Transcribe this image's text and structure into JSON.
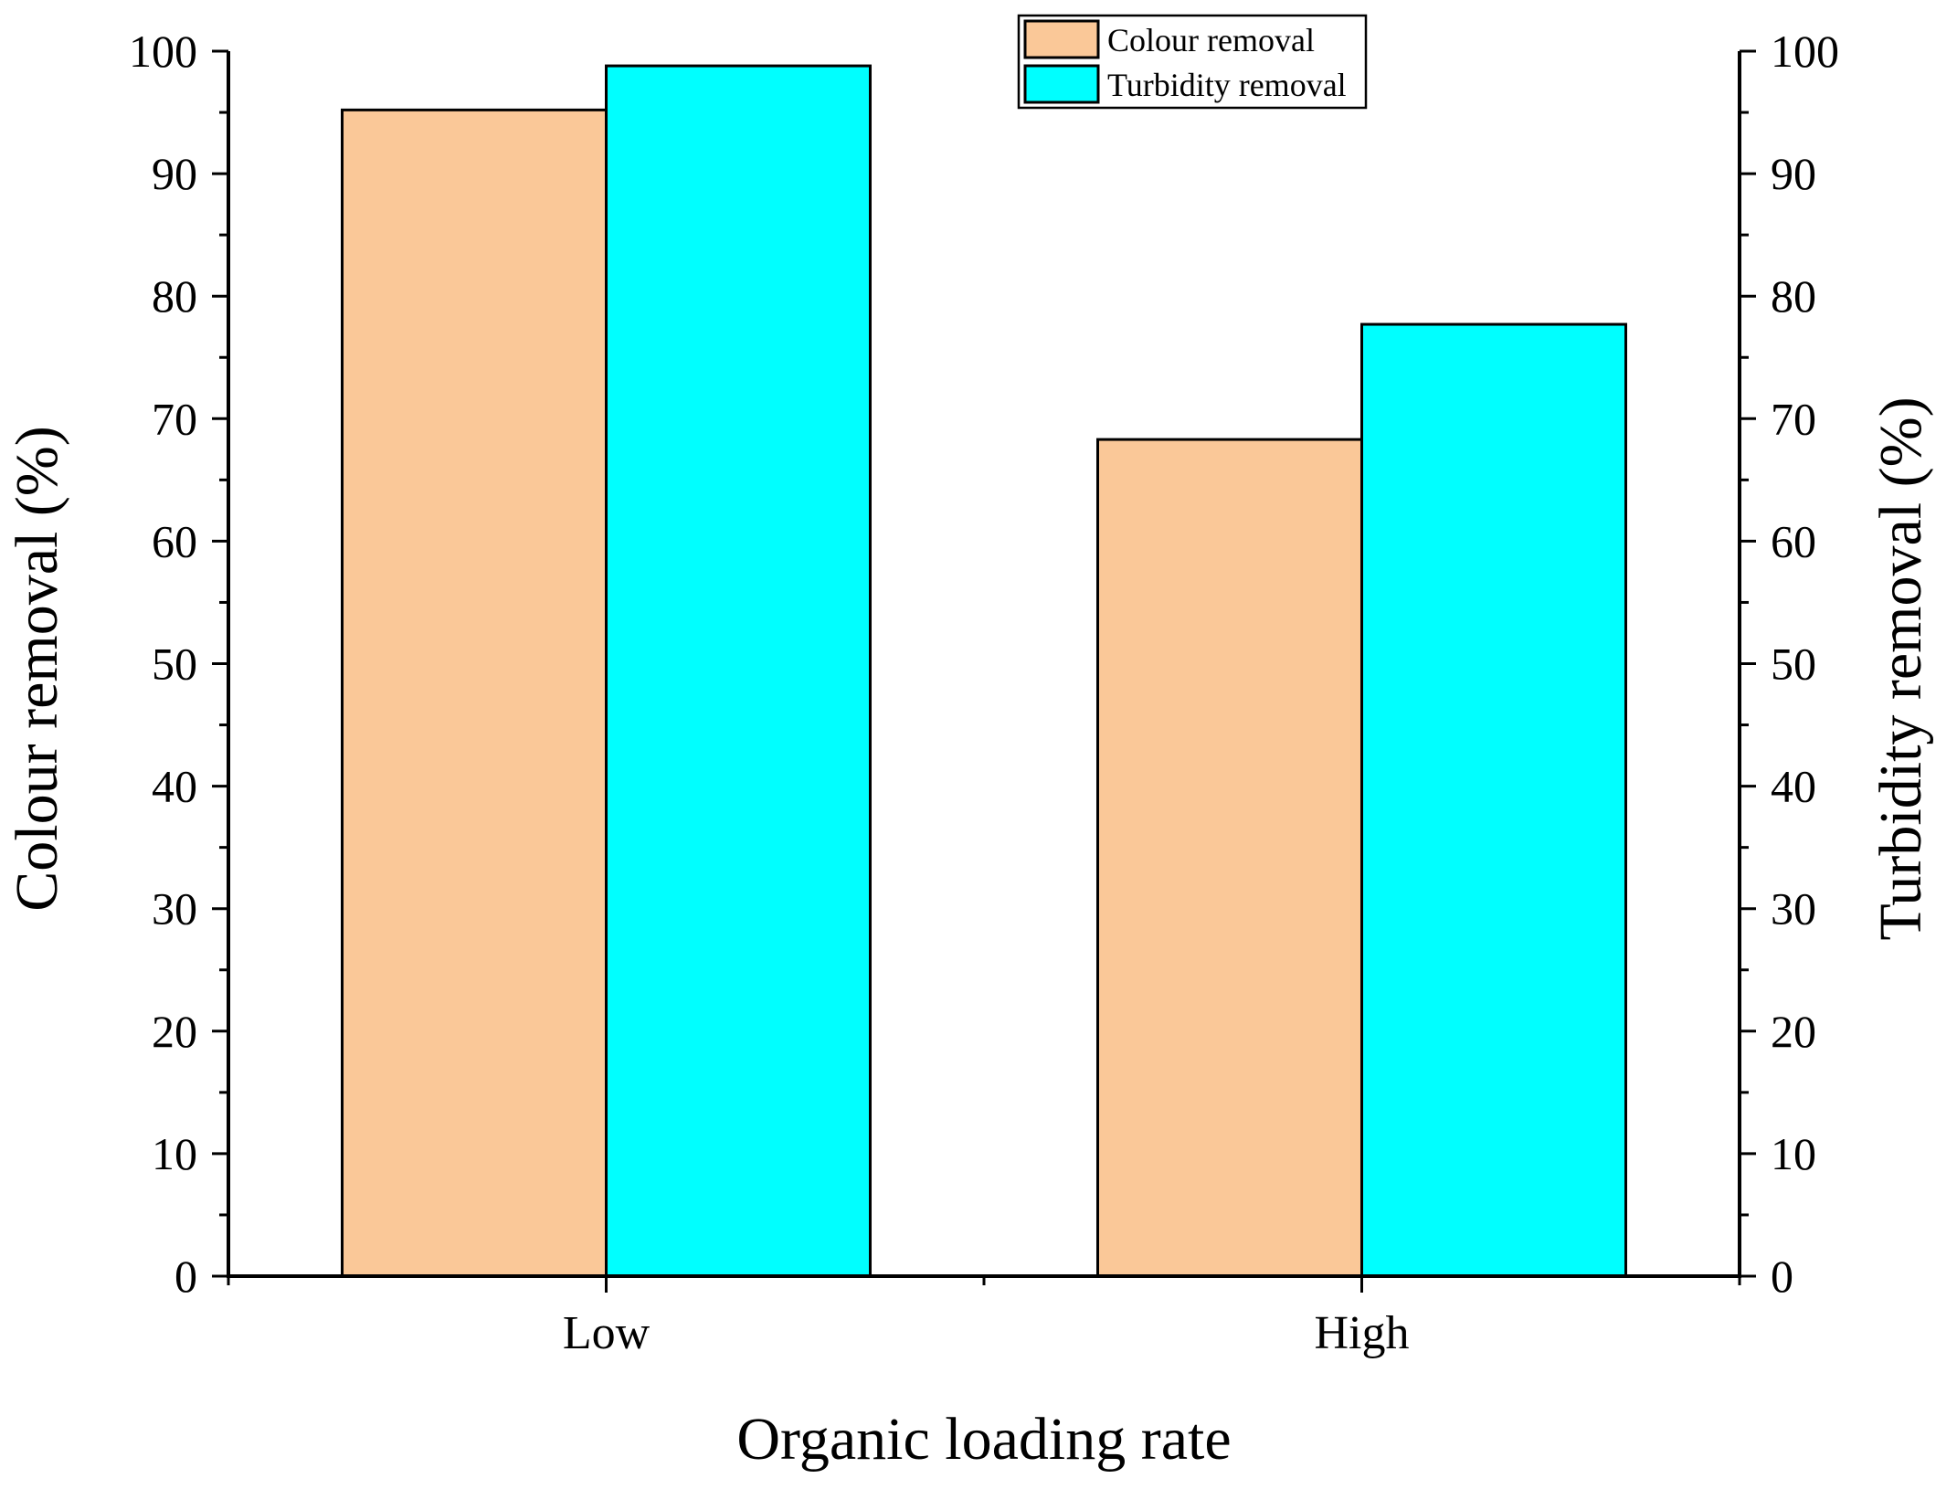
{
  "chart_data": {
    "type": "bar",
    "title": "",
    "xlabel": "Organic loading rate",
    "ylabel": "Colour removal (%)",
    "ylabel_right": "Turbidity removal (%)",
    "categories": [
      "Low",
      "High"
    ],
    "ylim": [
      0,
      100
    ],
    "ylim_right": [
      0,
      100
    ],
    "yticks": [
      0,
      10,
      20,
      30,
      40,
      50,
      60,
      70,
      80,
      90,
      100
    ],
    "ytick_labels": [
      "0",
      "10",
      "20",
      "30",
      "40",
      "50",
      "60",
      "70",
      "80",
      "90",
      "100"
    ],
    "grid": false,
    "legend_position": "top-center",
    "series": [
      {
        "name": "Colour removal",
        "axis": "left",
        "color": "#FAC898",
        "values": [
          95.2,
          68.3
        ]
      },
      {
        "name": "Turbidity removal",
        "axis": "right",
        "color": "#00FFFF",
        "values": [
          98.8,
          77.7
        ]
      }
    ]
  }
}
